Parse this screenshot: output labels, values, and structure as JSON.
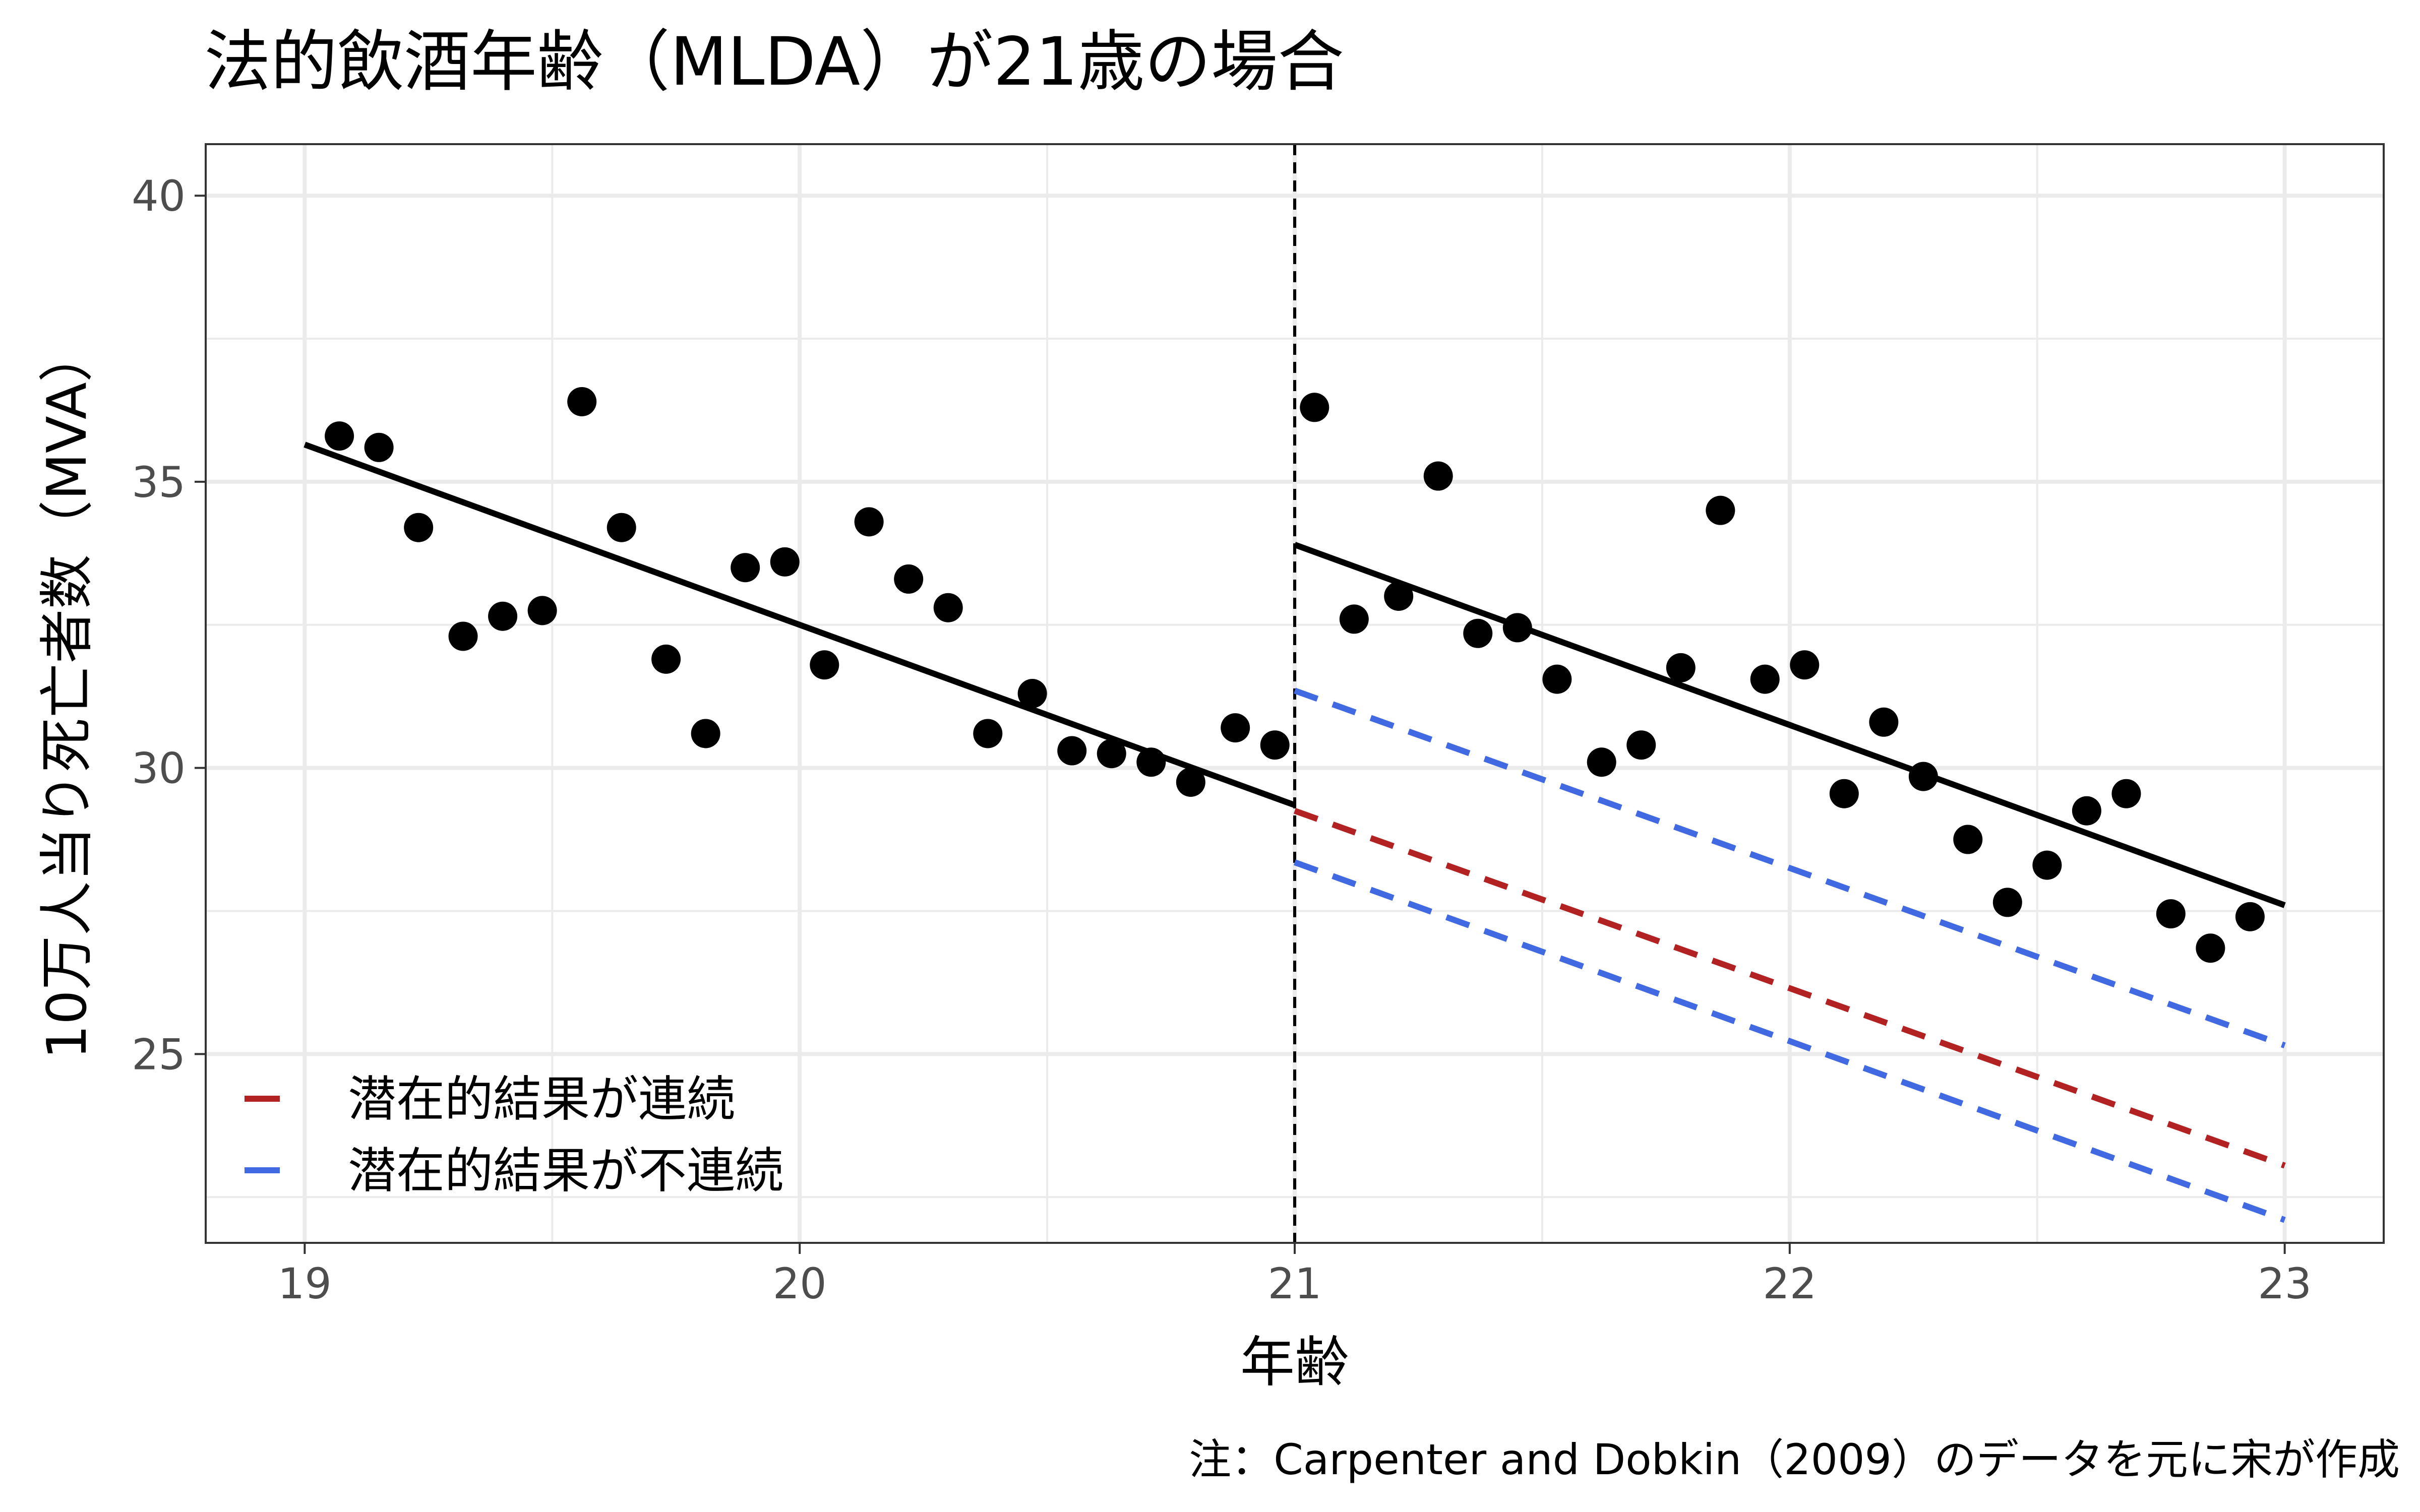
{
  "chart_data": {
    "type": "scatter",
    "title": "法的飲酒年齢（MLDA）が21歳の場合",
    "xlabel": "年齢",
    "ylabel": "10万人当り死亡者数（MVA）",
    "caption": "注：Carpenter and Dobkin（2009）のデータを元に宋が作成",
    "xlim": [
      18.8,
      23.2
    ],
    "ylim": [
      21.7,
      40.9
    ],
    "x_ticks": [
      "19",
      "20",
      "21",
      "22",
      "23"
    ],
    "y_ticks": [
      "25",
      "30",
      "35",
      "40"
    ],
    "grid": true,
    "cutoff": 21,
    "points": [
      {
        "x": 19.07,
        "y": 35.8
      },
      {
        "x": 19.15,
        "y": 35.6
      },
      {
        "x": 19.23,
        "y": 34.2
      },
      {
        "x": 19.32,
        "y": 32.3
      },
      {
        "x": 19.4,
        "y": 32.65
      },
      {
        "x": 19.48,
        "y": 32.75
      },
      {
        "x": 19.56,
        "y": 36.4
      },
      {
        "x": 19.64,
        "y": 34.2
      },
      {
        "x": 19.73,
        "y": 31.9
      },
      {
        "x": 19.81,
        "y": 30.6
      },
      {
        "x": 19.89,
        "y": 33.5
      },
      {
        "x": 19.97,
        "y": 33.6
      },
      {
        "x": 20.05,
        "y": 31.8
      },
      {
        "x": 20.14,
        "y": 34.3
      },
      {
        "x": 20.22,
        "y": 33.3
      },
      {
        "x": 20.3,
        "y": 32.8
      },
      {
        "x": 20.38,
        "y": 30.6
      },
      {
        "x": 20.47,
        "y": 31.3
      },
      {
        "x": 20.55,
        "y": 30.3
      },
      {
        "x": 20.63,
        "y": 30.25
      },
      {
        "x": 20.71,
        "y": 30.1
      },
      {
        "x": 20.79,
        "y": 29.75
      },
      {
        "x": 20.88,
        "y": 30.7
      },
      {
        "x": 20.96,
        "y": 30.4
      },
      {
        "x": 21.04,
        "y": 36.3
      },
      {
        "x": 21.12,
        "y": 32.6
      },
      {
        "x": 21.21,
        "y": 33.0
      },
      {
        "x": 21.29,
        "y": 35.1
      },
      {
        "x": 21.37,
        "y": 32.35
      },
      {
        "x": 21.45,
        "y": 32.45
      },
      {
        "x": 21.53,
        "y": 31.55
      },
      {
        "x": 21.62,
        "y": 30.1
      },
      {
        "x": 21.7,
        "y": 30.4
      },
      {
        "x": 21.78,
        "y": 31.75
      },
      {
        "x": 21.86,
        "y": 34.5
      },
      {
        "x": 21.95,
        "y": 31.55
      },
      {
        "x": 22.03,
        "y": 31.8
      },
      {
        "x": 22.11,
        "y": 29.55
      },
      {
        "x": 22.19,
        "y": 30.8
      },
      {
        "x": 22.27,
        "y": 29.85
      },
      {
        "x": 22.36,
        "y": 28.75
      },
      {
        "x": 22.44,
        "y": 27.65
      },
      {
        "x": 22.52,
        "y": 28.3
      },
      {
        "x": 22.6,
        "y": 29.25
      },
      {
        "x": 22.68,
        "y": 29.55
      },
      {
        "x": 22.77,
        "y": 27.45
      },
      {
        "x": 22.85,
        "y": 26.85
      },
      {
        "x": 22.93,
        "y": 27.4
      }
    ],
    "fit_lines": [
      {
        "x": [
          19.0,
          21.0
        ],
        "y": [
          35.65,
          29.35
        ],
        "color": "#000000",
        "dash": false
      },
      {
        "x": [
          21.0,
          23.0
        ],
        "y": [
          33.9,
          27.6
        ],
        "color": "#000000",
        "dash": false
      },
      {
        "x": [
          21.0,
          23.0
        ],
        "y": [
          29.25,
          23.05
        ],
        "color": "#B22222",
        "dash": true
      },
      {
        "x": [
          21.0,
          23.0
        ],
        "y": [
          31.35,
          25.15
        ],
        "color": "#4169E1",
        "dash": true
      },
      {
        "x": [
          21.0,
          23.0
        ],
        "y": [
          28.35,
          22.1
        ],
        "color": "#4169E1",
        "dash": true
      }
    ],
    "legend": {
      "position": "bottom-left",
      "items": [
        {
          "label": "潜在的結果が連続",
          "color": "#B22222"
        },
        {
          "label": "潜在的結果が不連続",
          "color": "#4169E1"
        }
      ]
    }
  }
}
